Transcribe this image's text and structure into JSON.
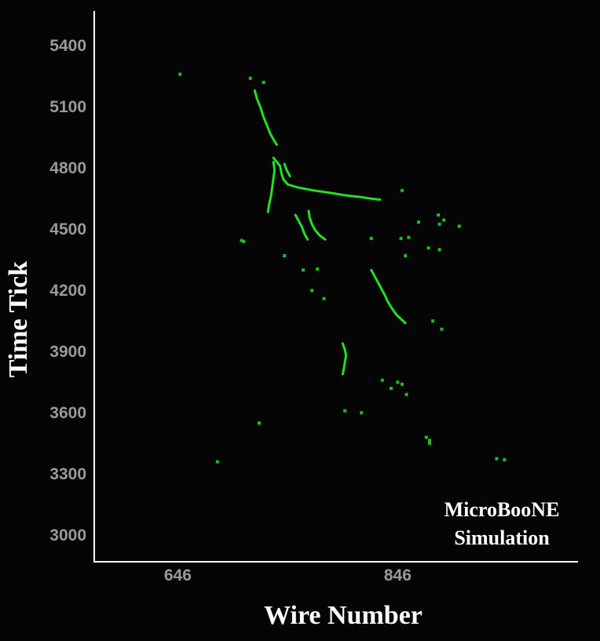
{
  "chart_data": {
    "type": "scatter",
    "title": "",
    "xlabel": "Wire Number",
    "ylabel": "Time Tick",
    "x_ticks": [
      646,
      846
    ],
    "y_ticks": [
      3000,
      3300,
      3600,
      3900,
      4200,
      4500,
      4800,
      5100,
      5400
    ],
    "xlim": [
      570,
      1010
    ],
    "ylim": [
      2870,
      5570
    ],
    "grid": false,
    "marker_color": "#22e022",
    "annotation": [
      "MicroBooNE",
      "Simulation"
    ],
    "tracks": [
      {
        "points": [
          [
            716,
            5180
          ],
          [
            718,
            5140
          ],
          [
            721,
            5100
          ],
          [
            724,
            5050
          ],
          [
            727,
            5010
          ],
          [
            730,
            4970
          ],
          [
            733,
            4940
          ],
          [
            736,
            4915
          ]
        ]
      },
      {
        "points": [
          [
            733,
            4850
          ],
          [
            736,
            4830
          ],
          [
            739,
            4810
          ],
          [
            740,
            4780
          ],
          [
            742,
            4745
          ],
          [
            746,
            4720
          ],
          [
            755,
            4705
          ],
          [
            770,
            4690
          ],
          [
            785,
            4678
          ],
          [
            800,
            4665
          ],
          [
            812,
            4658
          ],
          [
            822,
            4650
          ],
          [
            830,
            4645
          ]
        ]
      },
      {
        "points": [
          [
            733,
            4830
          ],
          [
            734,
            4790
          ],
          [
            733,
            4750
          ],
          [
            732,
            4710
          ],
          [
            731,
            4670
          ],
          [
            729,
            4620
          ],
          [
            728,
            4585
          ]
        ]
      },
      {
        "points": [
          [
            743,
            4820
          ],
          [
            745,
            4790
          ],
          [
            748,
            4760
          ]
        ]
      },
      {
        "points": [
          [
            753,
            4570
          ],
          [
            756,
            4540
          ],
          [
            759,
            4510
          ],
          [
            761,
            4480
          ],
          [
            764,
            4450
          ]
        ]
      },
      {
        "points": [
          [
            765,
            4590
          ],
          [
            766,
            4555
          ],
          [
            768,
            4525
          ],
          [
            771,
            4495
          ],
          [
            775,
            4470
          ],
          [
            780,
            4450
          ]
        ]
      },
      {
        "points": [
          [
            822,
            4300
          ],
          [
            826,
            4260
          ],
          [
            830,
            4220
          ],
          [
            834,
            4180
          ],
          [
            837,
            4145
          ],
          [
            841,
            4110
          ],
          [
            845,
            4080
          ],
          [
            849,
            4060
          ],
          [
            853,
            4040
          ]
        ]
      },
      {
        "points": [
          [
            796,
            3940
          ],
          [
            798,
            3910
          ],
          [
            799,
            3880
          ],
          [
            798,
            3850
          ],
          [
            797,
            3815
          ],
          [
            796,
            3790
          ]
        ]
      }
    ],
    "points": [
      [
        712,
        5240
      ],
      [
        724,
        5220
      ],
      [
        704,
        4445
      ],
      [
        706,
        4440
      ],
      [
        743,
        4370
      ],
      [
        760,
        4300
      ],
      [
        773,
        4305
      ],
      [
        768,
        4200
      ],
      [
        779,
        4160
      ],
      [
        822,
        4455
      ],
      [
        849,
        4455
      ],
      [
        853,
        4370
      ],
      [
        865,
        4535
      ],
      [
        856,
        4460
      ],
      [
        874,
        4408
      ],
      [
        884,
        4400
      ],
      [
        884,
        4525
      ],
      [
        883,
        4570
      ],
      [
        888,
        4545
      ],
      [
        902,
        4515
      ],
      [
        886,
        4010
      ],
      [
        878,
        4050
      ],
      [
        832,
        3760
      ],
      [
        840,
        3720
      ],
      [
        846,
        3750
      ],
      [
        850,
        3740
      ],
      [
        854,
        3690
      ],
      [
        872,
        3480
      ],
      [
        875,
        3465
      ],
      [
        875,
        3450
      ],
      [
        720,
        3550
      ],
      [
        936,
        3375
      ],
      [
        943,
        3370
      ],
      [
        682,
        3360
      ],
      [
        648,
        5260
      ],
      [
        850,
        4690
      ],
      [
        798,
        3610
      ],
      [
        813,
        3600
      ]
    ]
  }
}
